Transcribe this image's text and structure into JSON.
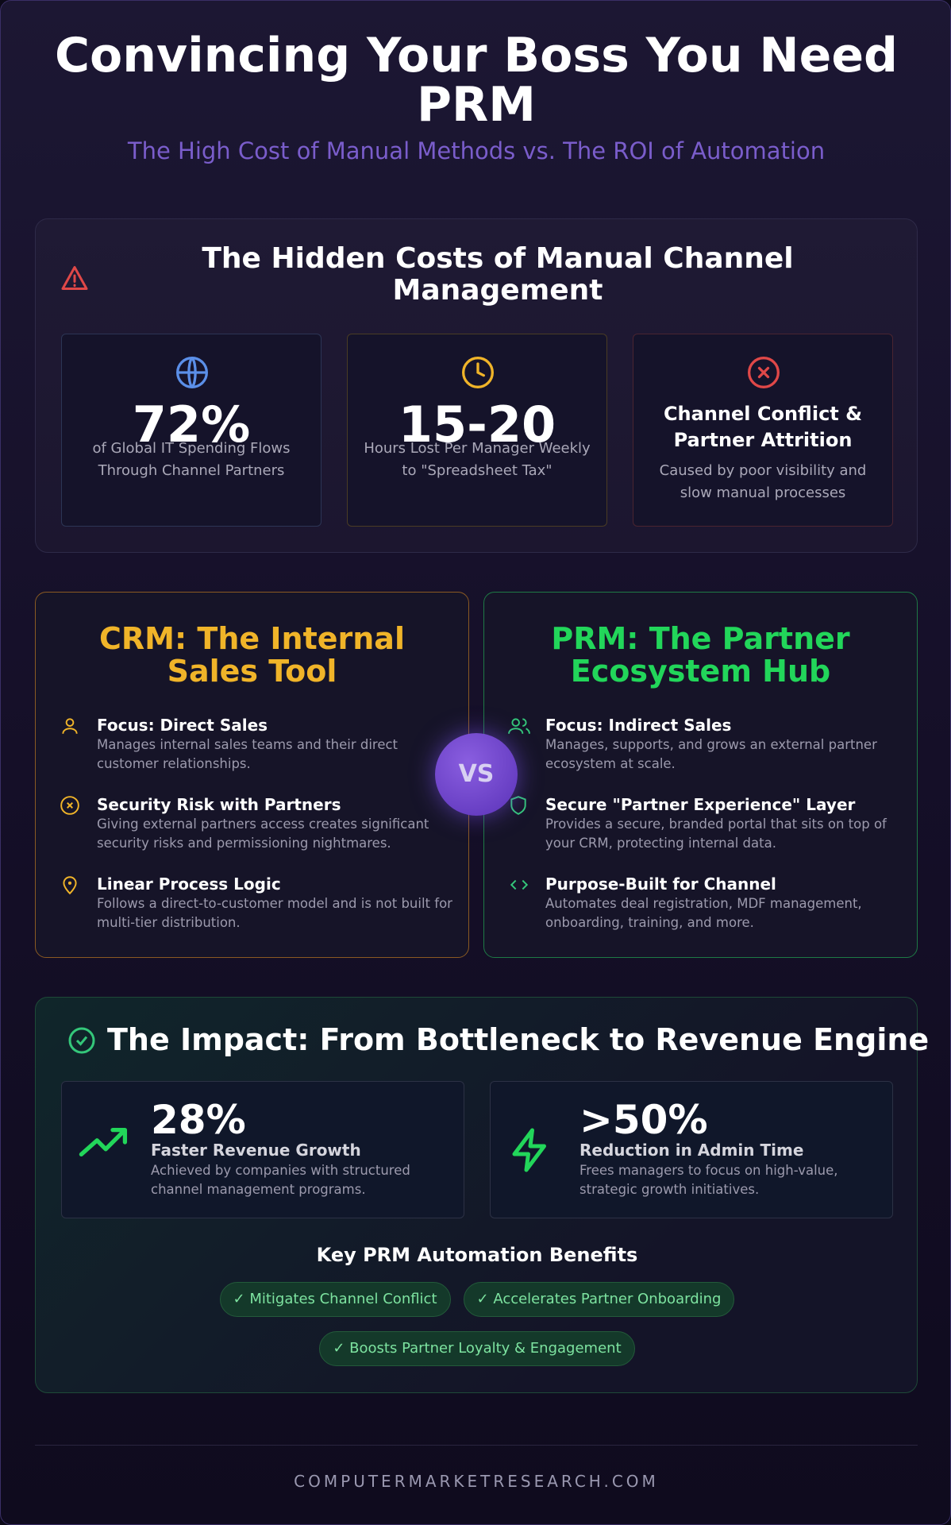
{
  "header": {
    "title": "Convincing Your Boss You Need PRM",
    "subtitle": "The High Cost of Manual Methods vs. The ROI of Automation"
  },
  "hidden_costs": {
    "title": "The Hidden Costs of Manual Channel Management",
    "cards": [
      {
        "stat": "72%",
        "text": "of Global IT Spending Flows Through Channel Partners"
      },
      {
        "stat": "15-20",
        "text": "Hours Lost Per Manager Weekly to \"Spreadsheet Tax\""
      },
      {
        "heading": "Channel Conflict & Partner Attrition",
        "text": "Caused by poor visibility and slow manual processes"
      }
    ]
  },
  "comparison": {
    "crm": {
      "title": "CRM: The Internal Sales Tool",
      "items": [
        {
          "title": "Focus: Direct Sales",
          "text": "Manages internal sales teams and their direct customer relationships."
        },
        {
          "title": "Security Risk with Partners",
          "text": "Giving external partners access creates significant security risks and permissioning nightmares."
        },
        {
          "title": "Linear Process Logic",
          "text": "Follows a direct-to-customer model and is not built for multi-tier distribution."
        }
      ]
    },
    "vs": "VS",
    "prm": {
      "title": "PRM: The Partner Ecosystem Hub",
      "items": [
        {
          "title": "Focus: Indirect Sales",
          "text": "Manages, supports, and grows an external partner ecosystem at scale."
        },
        {
          "title": "Secure \"Partner Experience\" Layer",
          "text": "Provides a secure, branded portal that sits on top of your CRM, protecting internal data."
        },
        {
          "title": "Purpose-Built for Channel",
          "text": "Automates deal registration, MDF management, onboarding, training, and more."
        }
      ]
    }
  },
  "impact": {
    "title": "The Impact: From Bottleneck to Revenue Engine",
    "stats": [
      {
        "stat": "28%",
        "label": "Faster Revenue Growth",
        "text": "Achieved by companies with structured channel management programs."
      },
      {
        "stat": ">50%",
        "label": "Reduction in Admin Time",
        "text": "Frees managers to focus on high-value, strategic growth initiatives."
      }
    ],
    "benefits_title": "Key PRM Automation Benefits",
    "benefits": [
      "✓ Mitigates Channel Conflict",
      "✓ Accelerates Partner Onboarding",
      "✓ Boosts Partner Loyalty & Engagement"
    ]
  },
  "footer": "COMPUTERMARKETRESEARCH.COM"
}
